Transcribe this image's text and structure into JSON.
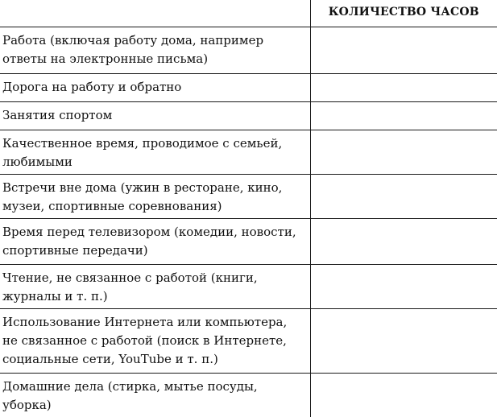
{
  "table": {
    "header": {
      "activity_label": "",
      "hours_label": "КОЛИЧЕСТВО ЧАСОВ"
    },
    "rows": [
      {
        "label": "Работа (включая работу дома, например\nответы на электронные письма)",
        "hours": ""
      },
      {
        "label": "Дорога на работу и обратно",
        "hours": ""
      },
      {
        "label": "Занятия спортом",
        "hours": ""
      },
      {
        "label": "Качественное время, проводимое с семьей,\nлюбимыми",
        "hours": ""
      },
      {
        "label": "Встречи вне дома (ужин в ресторане, кино,\nмузеи, спортивные соревнования)",
        "hours": ""
      },
      {
        "label": "Время перед телевизором (комедии, новости,\nспортивные передачи)",
        "hours": ""
      },
      {
        "label": "Чтение, не связанное с работой (книги,\nжурналы и т. п.)",
        "hours": ""
      },
      {
        "label": "Использование Интернета или компьютера,\nне связанное с работой (поиск в Интернете,\nсоциальные сети, YouTube и т. п.)",
        "hours": ""
      },
      {
        "label": "Домашние дела (стирка, мытье посуды, уборка)",
        "hours": ""
      }
    ],
    "colors": {
      "text": "#111111",
      "line": "#1a1a1a",
      "background": "#ffffff"
    }
  }
}
